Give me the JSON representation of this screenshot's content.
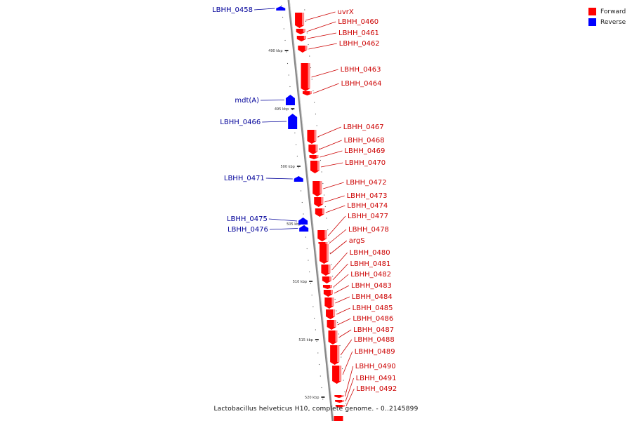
{
  "title": "Lactobacillus helveticus H10, complete genome. - 0..2145899",
  "legend": [
    {
      "label": "Forward",
      "color": "#ff0000"
    },
    {
      "label": "Reverse",
      "color": "#0000ff"
    }
  ],
  "colors": {
    "forward": "#ff0000",
    "reverse": "#0000ff",
    "backbone": "#888888",
    "forward_label": "#cc0000",
    "reverse_label": "#000099"
  },
  "scale_ticks": [
    "490 kbp",
    "495 kbp",
    "500 kbp",
    "505 kbp",
    "510 kbp",
    "515 kbp",
    "520 kbp"
  ],
  "genes": [
    {
      "name": "LBHH_0458",
      "strand": "reverse"
    },
    {
      "name": "uvrX",
      "strand": "forward"
    },
    {
      "name": "LBHH_0460",
      "strand": "forward"
    },
    {
      "name": "LBHH_0461",
      "strand": "forward"
    },
    {
      "name": "LBHH_0462",
      "strand": "forward"
    },
    {
      "name": "LBHH_0463",
      "strand": "forward"
    },
    {
      "name": "LBHH_0464",
      "strand": "forward"
    },
    {
      "name": "mdt(A)",
      "strand": "reverse"
    },
    {
      "name": "LBHH_0466",
      "strand": "reverse"
    },
    {
      "name": "LBHH_0467",
      "strand": "forward"
    },
    {
      "name": "LBHH_0468",
      "strand": "forward"
    },
    {
      "name": "LBHH_0469",
      "strand": "forward"
    },
    {
      "name": "LBHH_0470",
      "strand": "forward"
    },
    {
      "name": "LBHH_0471",
      "strand": "reverse"
    },
    {
      "name": "LBHH_0472",
      "strand": "forward"
    },
    {
      "name": "LBHH_0473",
      "strand": "forward"
    },
    {
      "name": "LBHH_0474",
      "strand": "forward"
    },
    {
      "name": "LBHH_0475",
      "strand": "reverse"
    },
    {
      "name": "LBHH_0476",
      "strand": "reverse"
    },
    {
      "name": "LBHH_0477",
      "strand": "forward"
    },
    {
      "name": "LBHH_0478",
      "strand": "forward"
    },
    {
      "name": "argS",
      "strand": "forward"
    },
    {
      "name": "LBHH_0480",
      "strand": "forward"
    },
    {
      "name": "LBHH_0481",
      "strand": "forward"
    },
    {
      "name": "LBHH_0482",
      "strand": "forward"
    },
    {
      "name": "LBHH_0483",
      "strand": "forward"
    },
    {
      "name": "LBHH_0484",
      "strand": "forward"
    },
    {
      "name": "LBHH_0485",
      "strand": "forward"
    },
    {
      "name": "LBHH_0486",
      "strand": "forward"
    },
    {
      "name": "LBHH_0487",
      "strand": "forward"
    },
    {
      "name": "LBHH_0488",
      "strand": "forward"
    },
    {
      "name": "LBHH_0489",
      "strand": "forward"
    },
    {
      "name": "LBHH_0490",
      "strand": "forward"
    },
    {
      "name": "LBHH_0491",
      "strand": "forward"
    },
    {
      "name": "LBHH_0492",
      "strand": "forward"
    }
  ]
}
